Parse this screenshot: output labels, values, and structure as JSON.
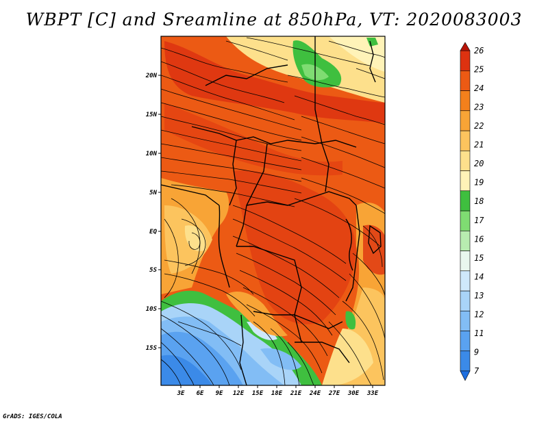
{
  "title": "WBPT [C] and Sreamline at 850hPa, VT: 2020083003",
  "footer": "GrADS: IGES/COLA",
  "lat_labels": [
    "20N",
    "15N",
    "10N",
    "5N",
    "EQ",
    "5S",
    "10S",
    "15S"
  ],
  "lon_labels": [
    "3E",
    "6E",
    "9E",
    "12E",
    "15E",
    "18E",
    "21E",
    "24E",
    "27E",
    "30E",
    "33E"
  ],
  "colorbar": {
    "labels": [
      "7",
      "9",
      "11",
      "12",
      "13",
      "14",
      "15",
      "16",
      "17",
      "18",
      "19",
      "20",
      "21",
      "22",
      "23",
      "24",
      "25",
      "26"
    ],
    "colors": [
      "#1e6fe0",
      "#3b8ae8",
      "#5aa2f0",
      "#82bdf5",
      "#a9d4f8",
      "#cfe8fb",
      "#e9f7ee",
      "#b8ecb0",
      "#7fdc72",
      "#3fbf3f",
      "#fff3b8",
      "#fde08c",
      "#fcc45e",
      "#f8a436",
      "#f3801c",
      "#ec5a14",
      "#dd3210",
      "#b81408"
    ]
  },
  "colors": {
    "frame": "#000000",
    "background": "#ffffff"
  }
}
